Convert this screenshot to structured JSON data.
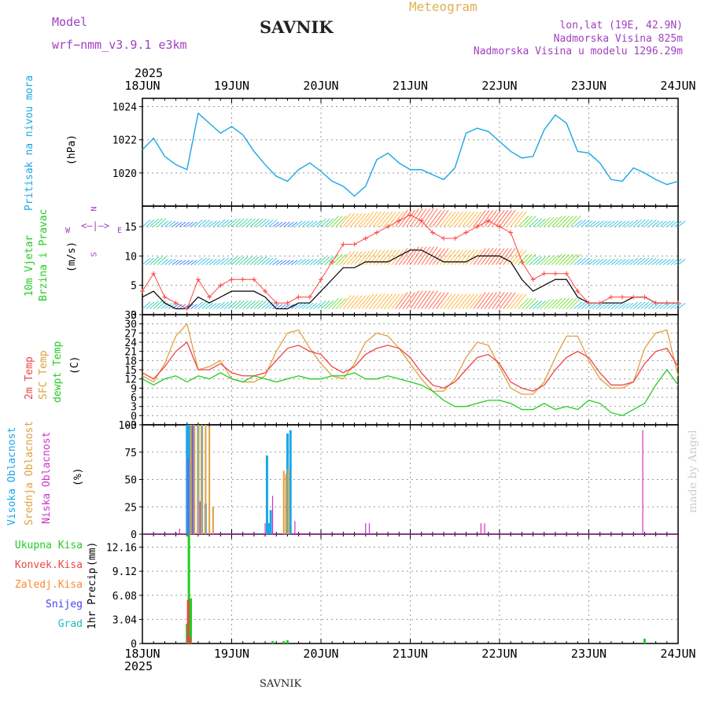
{
  "header": {
    "model_label": "Model",
    "model_name": "wrf−nmm_v3.9.1  e3km",
    "station": "SAVNIK",
    "product": "Meteogram",
    "lonlat": "lon,lat (19E, 42.9N)",
    "elevation": "Nadmorska Visina 825m",
    "model_elevation": "Nadmorska Visina u modelu 1296.29m",
    "year_top": "2025",
    "year_bottom": "2025",
    "footer_station": "SAVNIK",
    "credit": "made by Angel"
  },
  "colors": {
    "pressure": "#1aa7e6",
    "wind_speed": "#000000",
    "gust": "#ff4444",
    "temp_2m": "#ee4444",
    "temp_sfc": "#e0a040",
    "dewpt": "#22cc22",
    "cloud_high": "#1aa7e6",
    "cloud_mid": "#e0a040",
    "cloud_low": "#cc33cc",
    "precip_total": "#22cc22",
    "precip_conv": "#ee4444",
    "precip_freezing": "#ff8833",
    "precip_snow": "#4444ee",
    "precip_hail": "#22bbbb",
    "title_purple": "#a040c0"
  },
  "chart_data": [
    {
      "type": "line",
      "id": "pressure",
      "ylabel": "Pritisak na nivou mora",
      "unit": "(hPa)",
      "ylim": [
        1018,
        1024.5
      ],
      "yticks": [
        1020,
        1022,
        1024
      ],
      "x_range": [
        0,
        144
      ],
      "x_tick_labels": [
        "18JUN",
        "19JUN",
        "20JUN",
        "21JUN",
        "22JUN",
        "23JUN",
        "24JUN"
      ],
      "series": [
        {
          "name": "MSLP",
          "x": [
            0,
            3,
            6,
            9,
            12,
            15,
            18,
            21,
            24,
            27,
            30,
            33,
            36,
            39,
            42,
            45,
            48,
            51,
            54,
            57,
            60,
            63,
            66,
            69,
            72,
            75,
            78,
            81,
            84,
            87,
            90,
            93,
            96,
            99,
            102,
            105,
            108,
            111,
            114,
            117,
            120,
            123,
            126,
            129,
            132,
            135,
            138,
            141,
            144
          ],
          "values": [
            1021.4,
            1022.1,
            1021.0,
            1020.5,
            1020.2,
            1023.6,
            1023.0,
            1022.4,
            1022.8,
            1022.3,
            1021.3,
            1020.5,
            1019.8,
            1019.5,
            1020.2,
            1020.6,
            1020.1,
            1019.5,
            1019.2,
            1018.6,
            1019.2,
            1020.8,
            1021.2,
            1020.6,
            1020.2,
            1020.2,
            1019.9,
            1019.6,
            1020.3,
            1022.4,
            1022.7,
            1022.5,
            1021.9,
            1021.3,
            1020.9,
            1021.0,
            1022.6,
            1023.5,
            1023.0,
            1021.3,
            1021.2,
            1020.6,
            1019.6,
            1019.5,
            1020.3,
            1020.0,
            1019.6,
            1019.3,
            1019.5
          ]
        }
      ]
    },
    {
      "type": "line",
      "id": "wind",
      "ylabel": "10m Vjetar",
      "ylabel2": "Brzina i Pravac",
      "unit": "(m/s)",
      "compass": {
        "n": "N",
        "w": "W",
        "e": "E",
        "s": "S"
      },
      "ylim": [
        0,
        18.5
      ],
      "yticks": [
        0,
        5,
        10,
        15
      ],
      "x_range": [
        0,
        144
      ],
      "barb_rows": [
        1,
        8.5,
        15
      ],
      "series": [
        {
          "name": "Brzina",
          "x": [
            0,
            3,
            6,
            9,
            12,
            15,
            18,
            21,
            24,
            27,
            30,
            33,
            36,
            39,
            42,
            45,
            48,
            51,
            54,
            57,
            60,
            63,
            66,
            69,
            72,
            75,
            78,
            81,
            84,
            87,
            90,
            93,
            96,
            99,
            102,
            105,
            108,
            111,
            114,
            117,
            120,
            123,
            126,
            129,
            132,
            135,
            138,
            141,
            144
          ],
          "values": [
            3,
            4,
            2,
            1,
            1,
            3,
            2,
            3,
            4,
            4,
            4,
            3,
            1,
            1,
            2,
            2,
            4,
            6,
            8,
            8,
            9,
            9,
            9,
            10,
            11,
            11,
            10,
            9,
            9,
            9,
            10,
            10,
            10,
            9,
            6,
            4,
            5,
            6,
            6,
            3,
            2,
            2,
            2,
            2,
            3,
            3,
            2,
            2,
            2
          ]
        },
        {
          "name": "Udari",
          "x": [
            0,
            3,
            6,
            9,
            12,
            15,
            18,
            21,
            24,
            27,
            30,
            33,
            36,
            39,
            42,
            45,
            48,
            51,
            54,
            57,
            60,
            63,
            66,
            69,
            72,
            75,
            78,
            81,
            84,
            87,
            90,
            93,
            96,
            99,
            102,
            105,
            108,
            111,
            114,
            117,
            120,
            123,
            126,
            129,
            132,
            135,
            138,
            141,
            144
          ],
          "values": [
            4,
            7,
            3,
            2,
            1,
            6,
            3,
            5,
            6,
            6,
            6,
            4,
            2,
            2,
            3,
            3,
            6,
            9,
            12,
            12,
            13,
            14,
            15,
            16,
            17,
            16,
            14,
            13,
            13,
            14,
            15,
            16,
            15,
            14,
            9,
            6,
            7,
            7,
            7,
            4,
            2,
            2,
            3,
            3,
            3,
            3,
            2,
            2,
            2
          ]
        }
      ]
    },
    {
      "type": "line",
      "id": "temperature",
      "ylabel": "2m Temp",
      "ylabel2": "SFC Temp",
      "ylabel3": "dewpt Temp",
      "unit": "(C)",
      "ylim": [
        -3,
        33
      ],
      "yticks": [
        -3,
        0,
        3,
        6,
        9,
        12,
        15,
        18,
        21,
        24,
        27,
        30,
        33
      ],
      "x_range": [
        0,
        144
      ],
      "series": [
        {
          "name": "2m Temp",
          "x": [
            0,
            3,
            6,
            9,
            12,
            15,
            18,
            21,
            24,
            27,
            30,
            33,
            36,
            39,
            42,
            45,
            48,
            51,
            54,
            57,
            60,
            63,
            66,
            69,
            72,
            75,
            78,
            81,
            84,
            87,
            90,
            93,
            96,
            99,
            102,
            105,
            108,
            111,
            114,
            117,
            120,
            123,
            126,
            129,
            132,
            135,
            138,
            141,
            144
          ],
          "values": [
            14,
            12,
            16,
            21,
            24,
            15,
            15,
            17,
            14,
            13,
            13,
            14,
            18,
            22,
            23,
            21,
            20,
            16,
            14,
            16,
            20,
            22,
            23,
            22,
            19,
            14,
            10,
            9,
            11,
            15,
            19,
            20,
            17,
            11,
            9,
            8,
            10,
            15,
            19,
            21,
            19,
            14,
            10,
            10,
            11,
            17,
            21,
            22,
            16
          ]
        },
        {
          "name": "SFC Temp",
          "x": [
            0,
            3,
            6,
            9,
            12,
            15,
            18,
            21,
            24,
            27,
            30,
            33,
            36,
            39,
            42,
            45,
            48,
            51,
            54,
            57,
            60,
            63,
            66,
            69,
            72,
            75,
            78,
            81,
            84,
            87,
            90,
            93,
            96,
            99,
            102,
            105,
            108,
            111,
            114,
            117,
            120,
            123,
            126,
            129,
            132,
            135,
            138,
            141,
            144
          ],
          "values": [
            13,
            11,
            17,
            26,
            30,
            15,
            16,
            18,
            12,
            11,
            11,
            13,
            21,
            27,
            28,
            22,
            17,
            13,
            12,
            17,
            24,
            27,
            26,
            22,
            17,
            12,
            8,
            8,
            12,
            19,
            24,
            23,
            16,
            9,
            7,
            7,
            11,
            19,
            26,
            26,
            18,
            12,
            9,
            9,
            11,
            22,
            27,
            28,
            13
          ]
        },
        {
          "name": "dewpt Temp",
          "x": [
            0,
            3,
            6,
            9,
            12,
            15,
            18,
            21,
            24,
            27,
            30,
            33,
            36,
            39,
            42,
            45,
            48,
            51,
            54,
            57,
            60,
            63,
            66,
            69,
            72,
            75,
            78,
            81,
            84,
            87,
            90,
            93,
            96,
            99,
            102,
            105,
            108,
            111,
            114,
            117,
            120,
            123,
            126,
            129,
            132,
            135,
            138,
            141,
            144
          ],
          "values": [
            12,
            10,
            12,
            13,
            11,
            13,
            12,
            14,
            12,
            11,
            13,
            12,
            11,
            12,
            13,
            12,
            12,
            13,
            13,
            14,
            12,
            12,
            13,
            12,
            11,
            10,
            8,
            5,
            3,
            3,
            4,
            5,
            5,
            4,
            2,
            2,
            4,
            2,
            3,
            2,
            5,
            4,
            1,
            0,
            2,
            4,
            10,
            15,
            10
          ]
        }
      ]
    },
    {
      "type": "bar",
      "id": "clouds",
      "ylabel": "Visoka Oblacnost",
      "ylabel2": "Srednja Oblacnost",
      "ylabel3": "Niska Oblacnost",
      "unit": "(%)",
      "ylim": [
        0,
        100
      ],
      "yticks": [
        0,
        25,
        50,
        75,
        100
      ],
      "x_range": [
        0,
        144
      ],
      "series": [
        {
          "name": "Visoka",
          "x": [
            12,
            12.6,
            13.2,
            13.8,
            15,
            16,
            17,
            33.5,
            34,
            34.5,
            39,
            39.8
          ],
          "values": [
            100,
            100,
            100,
            100,
            100,
            100,
            28,
            72,
            10,
            22,
            92,
            95
          ]
        },
        {
          "name": "Srednja",
          "x": [
            13,
            14,
            15,
            16,
            17,
            18,
            19,
            38,
            38.6,
            39.2
          ],
          "values": [
            100,
            100,
            100,
            100,
            100,
            98,
            25,
            58,
            55,
            60
          ]
        },
        {
          "name": "Niska",
          "x": [
            10,
            12.3,
            13.5,
            15.5,
            33,
            35,
            41,
            60,
            61,
            91,
            92,
            134.5
          ],
          "values": [
            5,
            70,
            100,
            30,
            10,
            35,
            12,
            10,
            10,
            10,
            10,
            95
          ]
        }
      ]
    },
    {
      "type": "bar",
      "id": "precip",
      "ylabel": "1hr Precip",
      "unit": "(mm)",
      "ylim": [
        0,
        13.8
      ],
      "yticks": [
        0,
        3.04,
        6.08,
        9.12,
        12.16
      ],
      "ytick_labels": [
        "0",
        "3.04",
        "6.08",
        "9.12",
        "12.16"
      ],
      "x_range": [
        0,
        144
      ],
      "legend": [
        "Ukupna Kisa",
        "Konvek.Kisa",
        "Zaledj.Kisa",
        "Snijeg",
        "Grad"
      ],
      "series": [
        {
          "name": "Ukupna Kisa",
          "x": [
            12,
            12.5,
            13,
            35,
            38,
            39,
            135
          ],
          "values": [
            2.5,
            13.8,
            5.7,
            0.3,
            0.3,
            0.4,
            0.6
          ]
        },
        {
          "name": "Konvek.Kisa",
          "x": [
            12.3,
            12.8
          ],
          "values": [
            5.5,
            0.8
          ]
        }
      ]
    }
  ]
}
